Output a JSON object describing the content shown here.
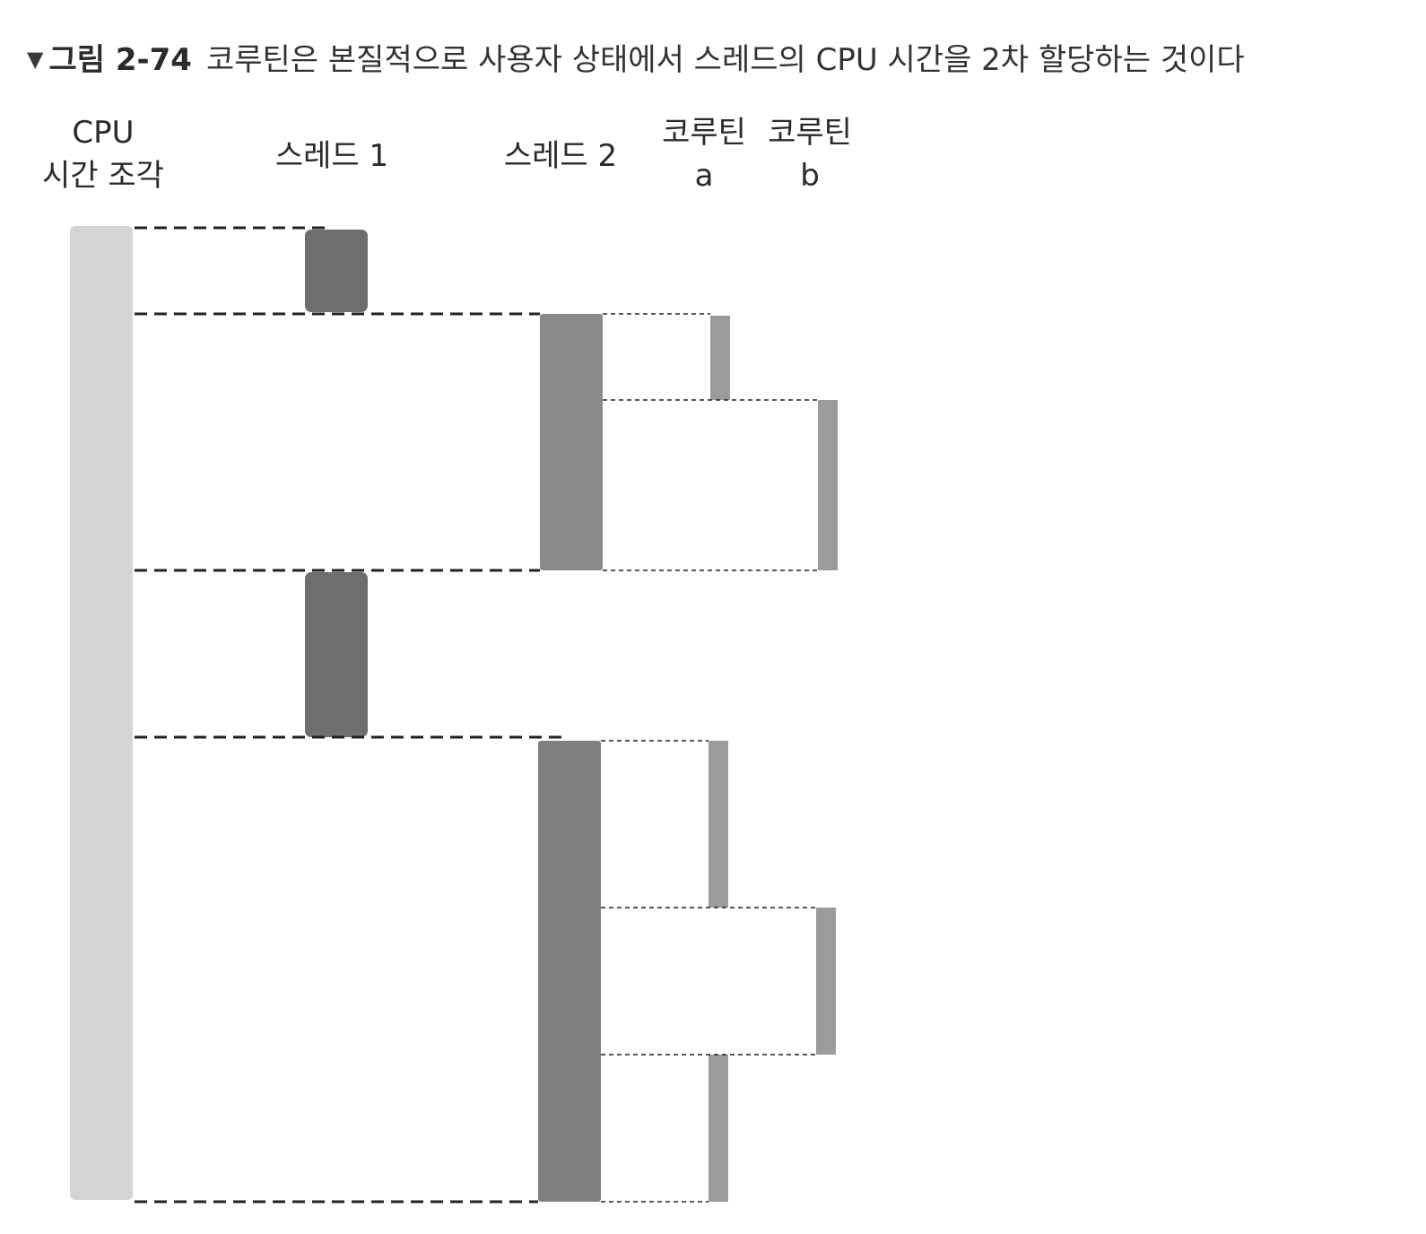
{
  "caption": {
    "marker": "▼",
    "figure_number": "그림 2-74",
    "text": "코루틴은 본질적으로 사용자 상태에서 스레드의 CPU 시간을 2차 할당하는 것이다"
  },
  "columns": {
    "cpu": {
      "line1": "CPU",
      "line2": "시간 조각"
    },
    "thread1": {
      "label": "스레드 1"
    },
    "thread2": {
      "label": "스레드 2"
    },
    "coroutine_a": {
      "line1": "코루틴",
      "line2": "a"
    },
    "coroutine_b": {
      "line1": "코루틴",
      "line2": "b"
    }
  },
  "colors": {
    "cpu_bar": "#d4d4d4",
    "thread1_block": "#6e6e6e",
    "thread2_block": "#8a8a8a",
    "coroutine_block": "#9b9b9b",
    "dashed_line": "#222222",
    "text": "#2a2a2a"
  },
  "schedule": {
    "cpu_slices": [
      {
        "thread": "스레드 1"
      },
      {
        "thread": "스레드 2",
        "coroutines": [
          "코루틴 a",
          "코루틴 b"
        ]
      },
      {
        "thread": "스레드 1"
      },
      {
        "thread": "스레드 2",
        "coroutines": [
          "코루틴 a",
          "코루틴 b",
          "코루틴 a"
        ]
      }
    ]
  }
}
